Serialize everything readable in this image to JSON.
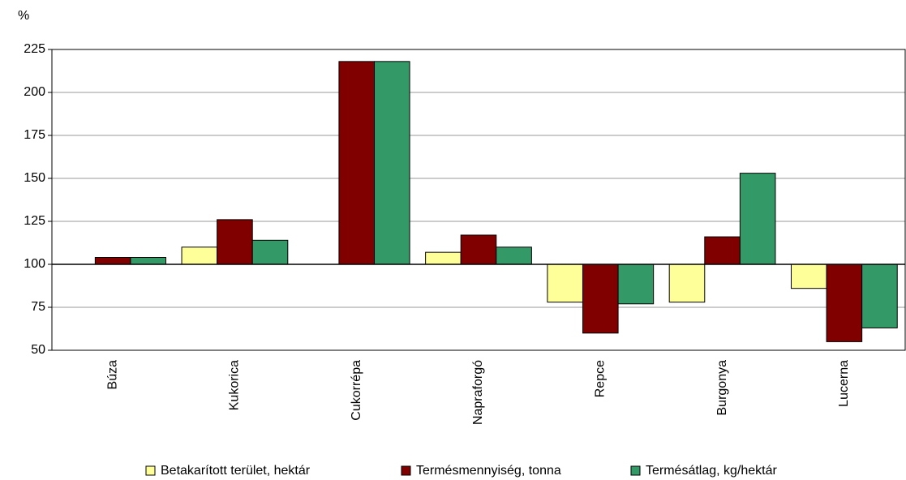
{
  "chart_data": {
    "type": "bar",
    "y_unit_label": "%",
    "categories": [
      "Búza",
      "Kukorica",
      "Cukorrépa",
      "Napraforgó",
      "Repce",
      "Burgonya",
      "Lucerna"
    ],
    "series": [
      {
        "name": "Betakarított terület, hektár",
        "color": "#ffff99",
        "values": [
          100,
          110,
          100,
          107,
          78,
          78,
          86
        ]
      },
      {
        "name": "Termésmennyiség, tonna",
        "color": "#800000",
        "values": [
          104,
          126,
          218,
          117,
          60,
          116,
          55
        ]
      },
      {
        "name": "Termésátlag, kg/hektár",
        "color": "#339966",
        "values": [
          104,
          114,
          218,
          110,
          77,
          153,
          63
        ]
      }
    ],
    "baseline": 100,
    "ylim": [
      50,
      225
    ],
    "yticks": [
      50,
      75,
      100,
      125,
      150,
      175,
      200,
      225
    ],
    "grid": true,
    "legend": "bottom"
  }
}
